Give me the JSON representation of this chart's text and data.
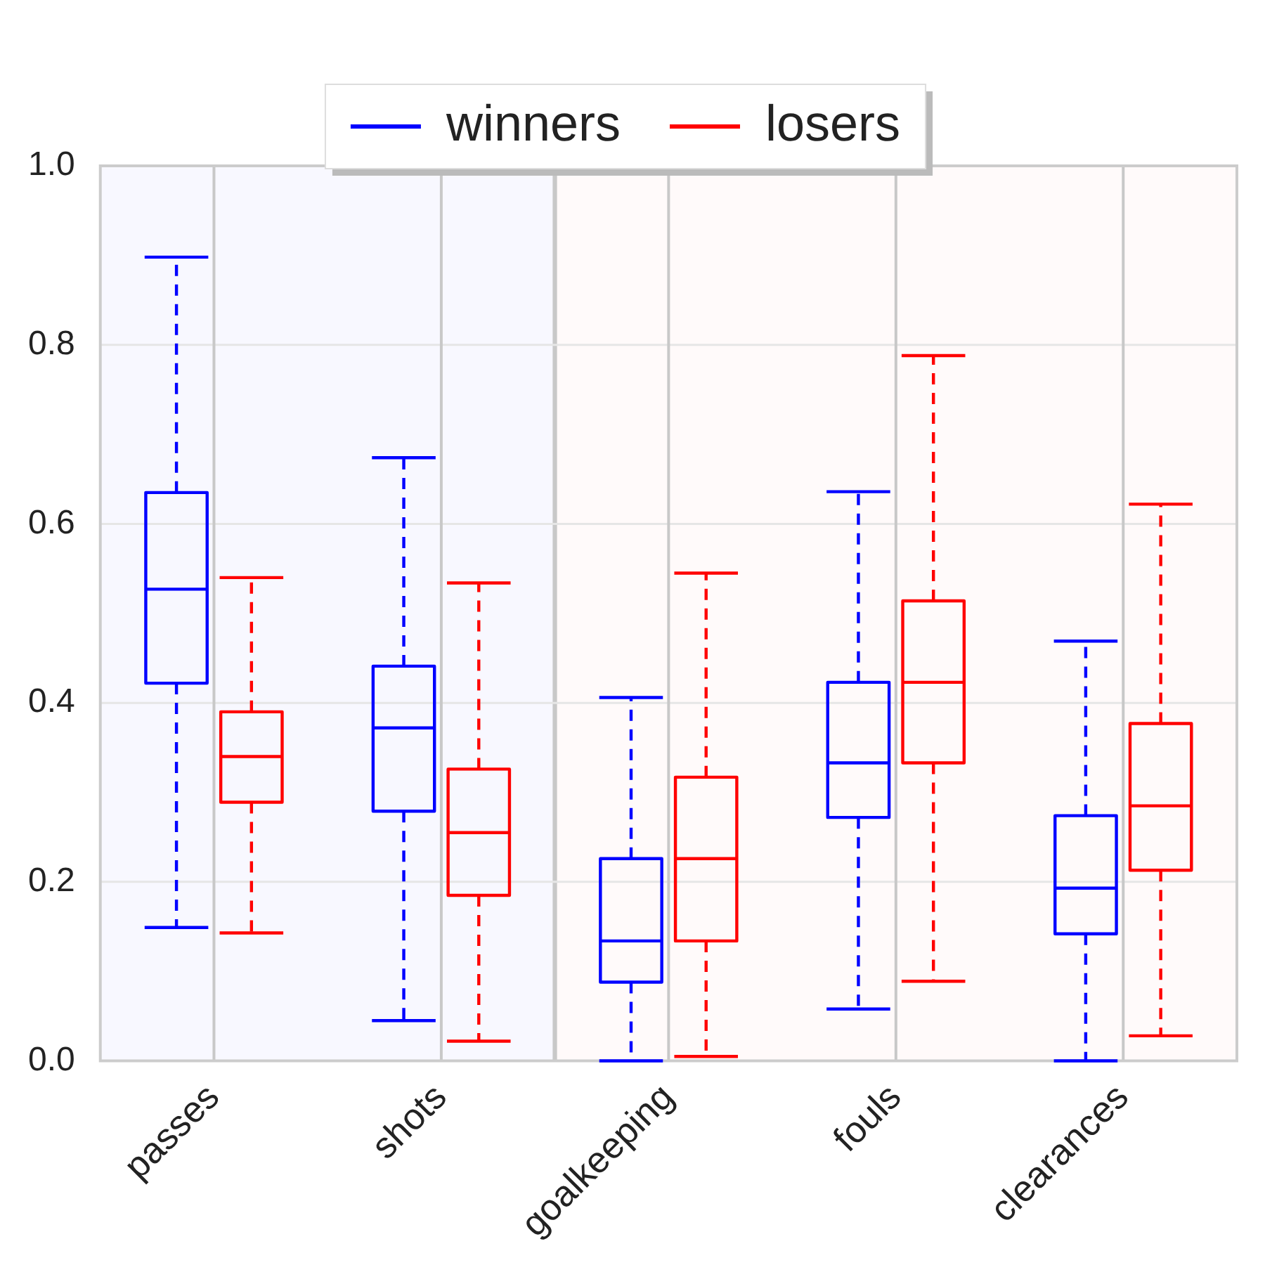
{
  "chart_data": {
    "type": "box",
    "categories": [
      "passes",
      "shots",
      "goalkeeping",
      "fouls",
      "clearances"
    ],
    "series": [
      {
        "name": "winners",
        "color": "#0000ff",
        "boxes": [
          {
            "low": 0.149,
            "q1": 0.422,
            "median": 0.527,
            "q3": 0.635,
            "high": 0.898
          },
          {
            "low": 0.045,
            "q1": 0.279,
            "median": 0.372,
            "q3": 0.441,
            "high": 0.674
          },
          {
            "low": 0.0,
            "q1": 0.088,
            "median": 0.134,
            "q3": 0.226,
            "high": 0.406
          },
          {
            "low": 0.058,
            "q1": 0.272,
            "median": 0.333,
            "q3": 0.423,
            "high": 0.636
          },
          {
            "low": 0.0,
            "q1": 0.142,
            "median": 0.193,
            "q3": 0.274,
            "high": 0.469
          }
        ]
      },
      {
        "name": "losers",
        "color": "#ff0000",
        "boxes": [
          {
            "low": 0.143,
            "q1": 0.289,
            "median": 0.34,
            "q3": 0.39,
            "high": 0.54
          },
          {
            "low": 0.022,
            "q1": 0.185,
            "median": 0.255,
            "q3": 0.326,
            "high": 0.534
          },
          {
            "low": 0.005,
            "q1": 0.134,
            "median": 0.226,
            "q3": 0.317,
            "high": 0.545
          },
          {
            "low": 0.089,
            "q1": 0.333,
            "median": 0.423,
            "q3": 0.514,
            "high": 0.788
          },
          {
            "low": 0.028,
            "q1": 0.213,
            "median": 0.285,
            "q3": 0.377,
            "high": 0.622
          }
        ]
      }
    ],
    "ylim": [
      0,
      1
    ],
    "yticks": [
      {
        "value": 0,
        "label": "0.0"
      },
      {
        "value": 0.2,
        "label": "0.2"
      },
      {
        "value": 0.4,
        "label": "0.4"
      },
      {
        "value": 0.6,
        "label": "0.6"
      },
      {
        "value": 0.8,
        "label": "0.8"
      },
      {
        "value": 1,
        "label": "1.0"
      }
    ],
    "bands": [
      {
        "axis": "x",
        "from": "passes",
        "to": "shots",
        "color": "#f8f8ff"
      },
      {
        "axis": "x",
        "from": "goalkeeping",
        "to": "clearances",
        "color": "#fffafa"
      }
    ],
    "grid": true,
    "legend": "top",
    "line_style": "dashed"
  }
}
